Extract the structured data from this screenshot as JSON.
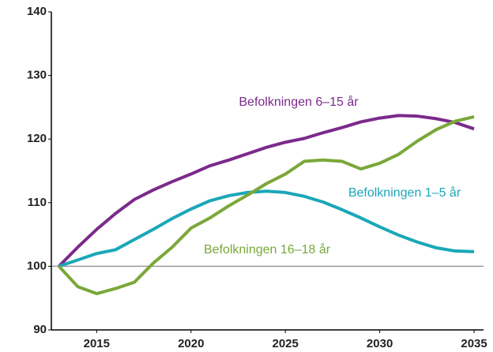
{
  "chart_data": {
    "type": "line",
    "x": [
      2013,
      2014,
      2015,
      2016,
      2017,
      2018,
      2019,
      2020,
      2021,
      2022,
      2023,
      2024,
      2025,
      2026,
      2027,
      2028,
      2029,
      2030,
      2031,
      2032,
      2033,
      2034,
      2035
    ],
    "series": [
      {
        "name": "Befolkningen 6–15 år",
        "color": "#7b2a8b",
        "values": [
          100,
          103,
          105.8,
          108.3,
          110.5,
          112,
          113.3,
          114.5,
          115.8,
          116.7,
          117.7,
          118.7,
          119.5,
          120.1,
          121,
          121.8,
          122.7,
          123.3,
          123.7,
          123.6,
          123.2,
          122.6,
          121.6
        ]
      },
      {
        "name": "Befolkningen 1–5 år",
        "color": "#1aa7b8",
        "values": [
          100,
          101,
          102,
          102.6,
          104.2,
          105.8,
          107.5,
          109,
          110.3,
          111.1,
          111.6,
          111.8,
          111.6,
          111,
          110.1,
          108.9,
          107.6,
          106.2,
          104.9,
          103.8,
          102.9,
          102.4,
          102.3
        ]
      },
      {
        "name": "Befolkningen 16–18 år",
        "color": "#7aa83a",
        "values": [
          100,
          96.8,
          95.7,
          96.5,
          97.5,
          100.5,
          103,
          106,
          107.6,
          109.5,
          111.2,
          113,
          114.5,
          116.5,
          116.7,
          116.5,
          115.3,
          116.2,
          117.6,
          119.7,
          121.5,
          122.8,
          123.5
        ]
      }
    ],
    "xlim": [
      2012.6,
      2035.5
    ],
    "xticks": [
      2015,
      2020,
      2025,
      2030,
      2035
    ],
    "ylim": [
      90,
      140
    ],
    "yticks": [
      90,
      100,
      110,
      120,
      130,
      140
    ],
    "reference_line": 100
  }
}
